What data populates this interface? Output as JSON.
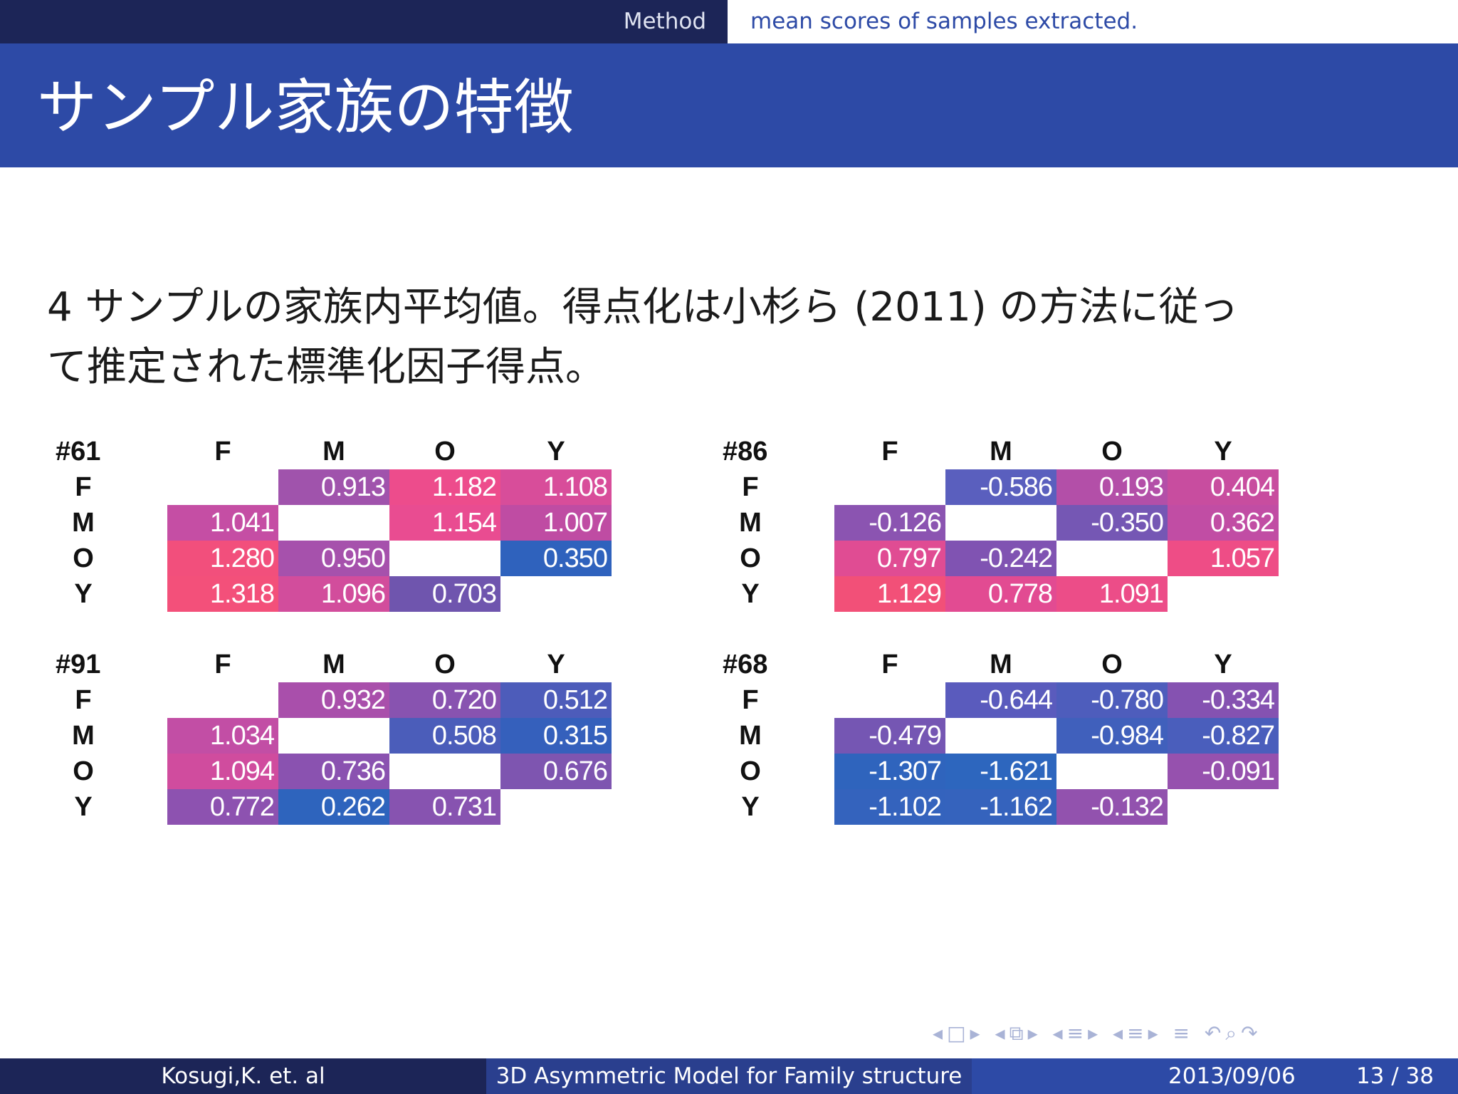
{
  "header": {
    "section": "Method",
    "subsection": "mean scores of samples extracted."
  },
  "title": "サンプル家族の特徴",
  "body": {
    "line1": "4 サンプルの家族内平均値。得点化は小杉ら (2011) の方法に従っ",
    "line2": "て推定された標準化因子得点。"
  },
  "tables": [
    {
      "id": "#61",
      "columns": [
        "F",
        "M",
        "O",
        "Y"
      ],
      "rows": [
        {
          "label": "F",
          "values": [
            "",
            "0.913",
            "1.182",
            "1.108"
          ],
          "colors": [
            "#ffffff",
            "#a053ac",
            "#ed4c8c",
            "#d84d9a"
          ]
        },
        {
          "label": "M",
          "values": [
            "1.041",
            "",
            "1.154",
            "1.007"
          ],
          "colors": [
            "#c54ea4",
            "#ffffff",
            "#e94c91",
            "#bf4ca3"
          ]
        },
        {
          "label": "O",
          "values": [
            "1.280",
            "0.950",
            "",
            "0.350"
          ],
          "colors": [
            "#f24f7c",
            "#a651ac",
            "#ffffff",
            "#2f62bd"
          ]
        },
        {
          "label": "Y",
          "values": [
            "1.318",
            "1.096",
            "0.703",
            ""
          ],
          "colors": [
            "#f3507a",
            "#d24d9c",
            "#6f55ae",
            "#ffffff"
          ]
        }
      ]
    },
    {
      "id": "#86",
      "columns": [
        "F",
        "M",
        "O",
        "Y"
      ],
      "rows": [
        {
          "label": "F",
          "values": [
            "",
            "-0.586",
            "0.193",
            "0.404"
          ],
          "colors": [
            "#ffffff",
            "#5a5fbe",
            "#b34fa8",
            "#c84d9f"
          ]
        },
        {
          "label": "M",
          "values": [
            "-0.126",
            "",
            "-0.350",
            "0.362"
          ],
          "colors": [
            "#8b54b1",
            "#ffffff",
            "#7557b4",
            "#c14da4"
          ]
        },
        {
          "label": "O",
          "values": [
            "0.797",
            "-0.242",
            "",
            "1.057"
          ],
          "colors": [
            "#e04c93",
            "#8053b2",
            "#ffffff",
            "#ee4d86"
          ]
        },
        {
          "label": "Y",
          "values": [
            "1.129",
            "0.778",
            "1.091",
            ""
          ],
          "colors": [
            "#f25078",
            "#e24b92",
            "#ec4d88",
            "#ffffff"
          ]
        }
      ]
    },
    {
      "id": "#91",
      "columns": [
        "F",
        "M",
        "O",
        "Y"
      ],
      "rows": [
        {
          "label": "F",
          "values": [
            "",
            "0.932",
            "0.720",
            "0.512"
          ],
          "colors": [
            "#ffffff",
            "#a94fab",
            "#8853b0",
            "#4d5cba"
          ]
        },
        {
          "label": "M",
          "values": [
            "1.034",
            "",
            "0.508",
            "0.315"
          ],
          "colors": [
            "#c24ea5",
            "#ffffff",
            "#4b5dba",
            "#3560bc"
          ]
        },
        {
          "label": "O",
          "values": [
            "1.094",
            "0.736",
            "",
            "0.676"
          ],
          "colors": [
            "#d04c9e",
            "#8a52b0",
            "#ffffff",
            "#7e55b0"
          ]
        },
        {
          "label": "Y",
          "values": [
            "0.772",
            "0.262",
            "0.731",
            ""
          ],
          "colors": [
            "#8d52b0",
            "#2e64bd",
            "#8753b0",
            "#ffffff"
          ]
        }
      ]
    },
    {
      "id": "#68",
      "columns": [
        "F",
        "M",
        "O",
        "Y"
      ],
      "rows": [
        {
          "label": "F",
          "values": [
            "",
            "-0.644",
            "-0.780",
            "-0.334"
          ],
          "colors": [
            "#ffffff",
            "#5a5bbd",
            "#4e5dbc",
            "#8552b1"
          ]
        },
        {
          "label": "M",
          "values": [
            "-0.479",
            "",
            "-0.984",
            "-0.827"
          ],
          "colors": [
            "#7556b3",
            "#ffffff",
            "#4060bc",
            "#4a5ebc"
          ]
        },
        {
          "label": "O",
          "values": [
            "-1.307",
            "-1.621",
            "",
            "-0.091"
          ],
          "colors": [
            "#2f64bd",
            "#2d66be",
            "#ffffff",
            "#9651ae"
          ]
        },
        {
          "label": "Y",
          "values": [
            "-1.102",
            "-1.162",
            "-0.132",
            ""
          ],
          "colors": [
            "#3463bd",
            "#3563bd",
            "#9252ae",
            "#ffffff"
          ]
        }
      ]
    }
  ],
  "footer": {
    "author": "Kosugi,K. et. al",
    "title": "3D Asymmetric Model for Family structure",
    "date": "2013/09/06",
    "page": "13 / 38"
  }
}
